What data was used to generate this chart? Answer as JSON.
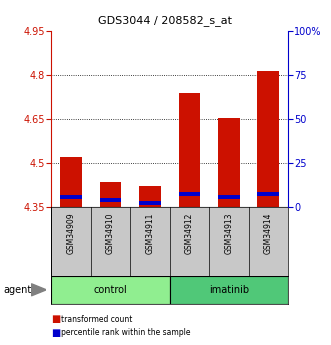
{
  "title": "GDS3044 / 208582_s_at",
  "samples": [
    "GSM34909",
    "GSM34910",
    "GSM34911",
    "GSM34912",
    "GSM34913",
    "GSM34914"
  ],
  "groups": [
    "control",
    "control",
    "control",
    "imatinib",
    "imatinib",
    "imatinib"
  ],
  "red_values": [
    4.52,
    4.435,
    4.42,
    4.74,
    4.655,
    4.815
  ],
  "blue_values": [
    4.385,
    4.375,
    4.365,
    4.395,
    4.385,
    4.395
  ],
  "ymin": 4.35,
  "ymax": 4.95,
  "yticks": [
    4.35,
    4.5,
    4.65,
    4.8,
    4.95
  ],
  "ytick_labels": [
    "4.35",
    "4.5",
    "4.65",
    "4.8",
    "4.95"
  ],
  "right_yticks": [
    0,
    25,
    50,
    75,
    100
  ],
  "right_ytick_labels": [
    "0",
    "25",
    "50",
    "75",
    "100%"
  ],
  "red_color": "#cc1100",
  "blue_color": "#0000cc",
  "bar_width": 0.55,
  "group_colors_control": "#90ee90",
  "group_colors_imatinib": "#50c878",
  "legend_items": [
    "transformed count",
    "percentile rank within the sample"
  ],
  "agent_label": "agent",
  "grid_color": "black",
  "background_color": "#ffffff",
  "tick_area_color": "#c8c8c8",
  "grid_lines": [
    4.5,
    4.65,
    4.8
  ]
}
